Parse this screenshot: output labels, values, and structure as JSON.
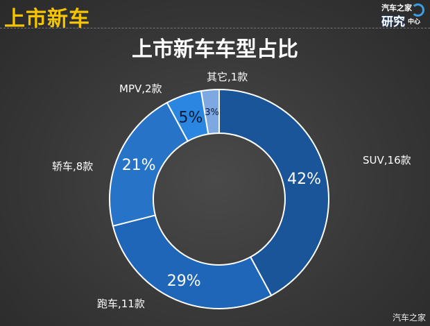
{
  "header": {
    "section_title": "上市新车",
    "logo_line1": "汽车之家",
    "logo_line2": "研究",
    "logo_line3": "中心",
    "watermark": "汽车之家"
  },
  "chart_data": {
    "type": "pie",
    "donut": true,
    "title": "上市新车车型占比",
    "unit": "款",
    "slices": [
      {
        "name": "SUV",
        "count": 16,
        "percent": 42,
        "label": "SUV,16款",
        "color": "#1a5599",
        "pct_color": "#ffffff"
      },
      {
        "name": "跑车",
        "count": 11,
        "percent": 29,
        "label": "跑车,11款",
        "color": "#1f66b8",
        "pct_color": "#ffffff"
      },
      {
        "name": "轿车",
        "count": 8,
        "percent": 21,
        "label": "轿车,8款",
        "color": "#2673c8",
        "pct_color": "#ffffff"
      },
      {
        "name": "MPV",
        "count": 2,
        "percent": 5,
        "label": "MPV,2款",
        "color": "#2a86e0",
        "pct_color": "#0a1a33"
      },
      {
        "name": "其它",
        "count": 1,
        "percent": 3,
        "label": "其它,1款",
        "color": "#7ea8e2",
        "pct_color": "#0a1a33"
      }
    ]
  }
}
